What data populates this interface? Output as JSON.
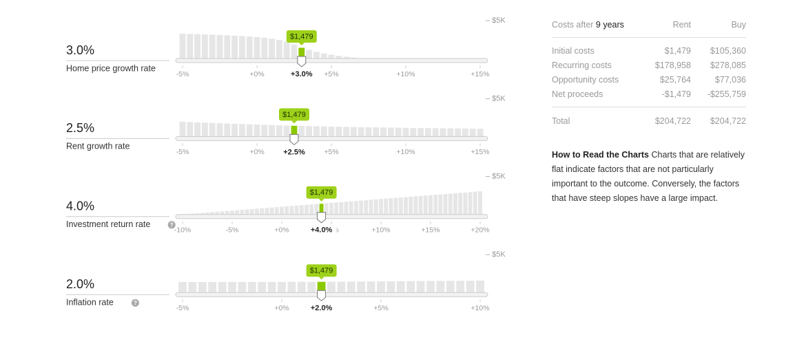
{
  "sliders": [
    {
      "value_label": "3.0%",
      "name": "Home price growth rate",
      "info": false,
      "xlim": [
        -5,
        15
      ],
      "xticks": [
        {
          "value": -5,
          "label": "-5%"
        },
        {
          "value": 0,
          "label": "+0%"
        },
        {
          "value": 5,
          "label": "+5%"
        },
        {
          "value": 10,
          "label": "+10%"
        },
        {
          "value": 15,
          "label": "+15%"
        }
      ],
      "selected": {
        "value": 3,
        "label": "+3.0%"
      },
      "tooltip": "$1,479",
      "ylim": [
        0,
        5
      ],
      "yticks": [
        {
          "value": 5,
          "label": "– $5K"
        }
      ],
      "bars": [
        3.3,
        3.28,
        3.25,
        3.22,
        3.18,
        3.14,
        3.1,
        3.05,
        3.0,
        2.94,
        2.87,
        2.78,
        2.66,
        2.5,
        2.3,
        1.9,
        1.48,
        1.2,
        0.95,
        0.75,
        0.58,
        0.44,
        0.32,
        0.22,
        0.14,
        0.08,
        0.03,
        0,
        0,
        0,
        0,
        0,
        0,
        0,
        0,
        0,
        0,
        0,
        0,
        0,
        0
      ]
    },
    {
      "value_label": "2.5%",
      "name": "Rent growth rate",
      "info": false,
      "xlim": [
        -5,
        15
      ],
      "xticks": [
        {
          "value": -5,
          "label": "-5%"
        },
        {
          "value": 0,
          "label": "+0%"
        },
        {
          "value": 5,
          "label": "+5%"
        },
        {
          "value": 10,
          "label": "+10%"
        },
        {
          "value": 15,
          "label": "+15%"
        }
      ],
      "selected": {
        "value": 2.5,
        "label": "+2.5%"
      },
      "tooltip": "$1,479",
      "ylim": [
        0,
        5
      ],
      "yticks": [
        {
          "value": 5,
          "label": "– $5K"
        }
      ],
      "bars": [
        2.0,
        1.96,
        1.92,
        1.88,
        1.85,
        1.81,
        1.78,
        1.74,
        1.71,
        1.67,
        1.64,
        1.61,
        1.57,
        1.54,
        1.51,
        1.48,
        1.46,
        1.44,
        1.42,
        1.4,
        1.38,
        1.36,
        1.34,
        1.32,
        1.3,
        1.29,
        1.27,
        1.26,
        1.24,
        1.23,
        1.21,
        1.2,
        1.19,
        1.18,
        1.17,
        1.16,
        1.15,
        1.14,
        1.12,
        1.11,
        1.1
      ]
    },
    {
      "value_label": "4.0%",
      "name": "Investment return rate",
      "info": true,
      "xlim": [
        -10,
        20
      ],
      "xticks": [
        {
          "value": -10,
          "label": "-10%"
        },
        {
          "value": -5,
          "label": "-5%"
        },
        {
          "value": 0,
          "label": "+0%"
        },
        {
          "value": 5,
          "label": "+5%"
        },
        {
          "value": 10,
          "label": "+10%"
        },
        {
          "value": 15,
          "label": "+15%"
        },
        {
          "value": 20,
          "label": "+20%"
        }
      ],
      "selected": {
        "value": 4,
        "label": "+4.0%"
      },
      "tooltip": "$1,479",
      "ylim": [
        0,
        5
      ],
      "yticks": [
        {
          "value": 5,
          "label": "– $5K"
        }
      ],
      "bars": [
        0.1,
        0.15,
        0.2,
        0.25,
        0.3,
        0.35,
        0.4,
        0.45,
        0.5,
        0.55,
        0.6,
        0.65,
        0.7,
        0.75,
        0.8,
        0.85,
        0.9,
        0.95,
        1.0,
        1.05,
        1.1,
        1.15,
        1.2,
        1.25,
        1.3,
        1.35,
        1.4,
        1.45,
        1.479,
        1.55,
        1.6,
        1.65,
        1.7,
        1.75,
        1.8,
        1.85,
        1.9,
        1.95,
        2.0,
        2.05,
        2.1,
        2.15,
        2.2,
        2.25,
        2.3,
        2.35,
        2.4,
        2.45,
        2.5,
        2.55,
        2.6,
        2.65,
        2.7,
        2.75,
        2.8,
        2.85,
        2.9,
        2.95,
        3.0,
        3.05,
        3.1
      ]
    },
    {
      "value_label": "2.0%",
      "name": "Inflation rate",
      "info": true,
      "xlim": [
        -5,
        10
      ],
      "xticks": [
        {
          "value": -5,
          "label": "-5%"
        },
        {
          "value": 0,
          "label": "+0%"
        },
        {
          "value": 5,
          "label": "+5%"
        },
        {
          "value": 10,
          "label": "+10%"
        }
      ],
      "selected": {
        "value": 2,
        "label": "+2.0%"
      },
      "tooltip": "$1,479",
      "ylim": [
        0,
        5
      ],
      "yticks": [
        {
          "value": 5,
          "label": "– $5K"
        }
      ],
      "bars": [
        1.45,
        1.45,
        1.45,
        1.46,
        1.46,
        1.46,
        1.46,
        1.47,
        1.47,
        1.47,
        1.47,
        1.48,
        1.48,
        1.48,
        1.479,
        1.49,
        1.5,
        1.51,
        1.52,
        1.53,
        1.54,
        1.55,
        1.56,
        1.57,
        1.58,
        1.59,
        1.6,
        1.61,
        1.62,
        1.63,
        1.64
      ]
    }
  ],
  "table": {
    "header": {
      "prefix": "Costs after",
      "years": "9 years",
      "rent": "Rent",
      "buy": "Buy"
    },
    "rows": [
      [
        "Initial costs",
        "$1,479",
        "$105,360"
      ],
      [
        "Recurring costs",
        "$178,958",
        "$278,085"
      ],
      [
        "Opportunity costs",
        "$25,764",
        "$77,036"
      ],
      [
        "Net proceeds",
        "-$1,479",
        "-$255,759"
      ]
    ],
    "total": [
      "Total",
      "$204,722",
      "$204,722"
    ]
  },
  "note": {
    "title": "How to Read the Charts",
    "text": "Charts that are relatively flat indicate factors that are not particularly important to the outcome. Conversely, the factors that have steep slopes have a large impact."
  }
}
